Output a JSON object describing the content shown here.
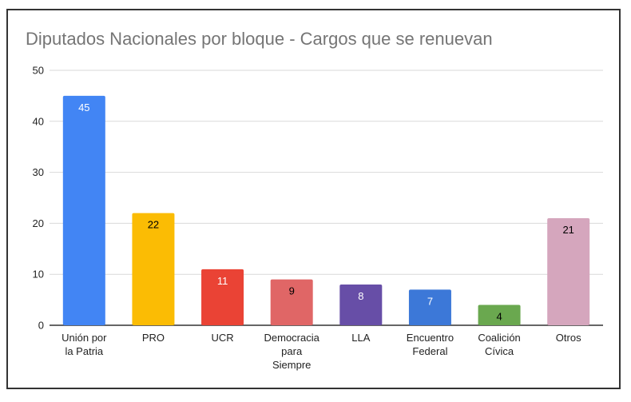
{
  "chart_data": {
    "type": "bar",
    "title": "Diputados Nacionales por bloque - Cargos que se renuevan",
    "xlabel": "",
    "ylabel": "",
    "ylim": [
      0,
      50
    ],
    "yticks": [
      "0",
      "10",
      "20",
      "30",
      "40",
      "50"
    ],
    "grid": true,
    "legend": "none",
    "categories": [
      [
        "Unión por",
        "la Patria"
      ],
      [
        "PRO"
      ],
      [
        "UCR"
      ],
      [
        "Democracia",
        "para",
        "Siempre"
      ],
      [
        "LLA"
      ],
      [
        "Encuentro",
        "Federal"
      ],
      [
        "Coalición",
        "Cívica"
      ],
      [
        "Otros"
      ]
    ],
    "values": [
      45,
      22,
      11,
      9,
      8,
      7,
      4,
      21
    ],
    "colors": [
      "#4285f4",
      "#fbbc04",
      "#ea4335",
      "#e06666",
      "#674ea7",
      "#3c78d8",
      "#6aa84f",
      "#d5a6bd"
    ],
    "label_colors": [
      "#ffffff",
      "#000000",
      "#ffffff",
      "#000000",
      "#ffffff",
      "#ffffff",
      "#000000",
      "#000000"
    ]
  }
}
